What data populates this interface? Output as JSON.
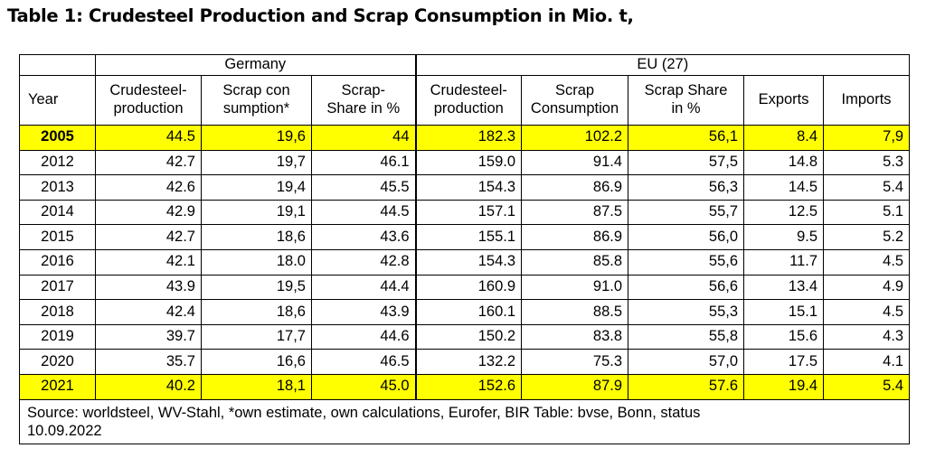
{
  "title": "Table 1: Crudesteel Production and Scrap Consumption in Mio. t,",
  "header": {
    "group_germany": "Germany",
    "group_eu": "EU (27)",
    "columns": [
      "Year",
      "Crudesteel-production",
      "Scrap con sumption*",
      "Scrap-Share in %",
      "Crudesteel-production",
      "Scrap Consumption",
      "Scrap Share in %",
      "Exports",
      "Imports"
    ],
    "columns_lines": [
      [
        "Year"
      ],
      [
        "Crudesteel-",
        "production"
      ],
      [
        "Scrap con",
        "sumption*"
      ],
      [
        "Scrap-",
        "Share in %"
      ],
      [
        "Crudesteel-",
        "production"
      ],
      [
        "Scrap",
        "Consumption"
      ],
      [
        "Scrap Share",
        "in %"
      ],
      [
        "Exports"
      ],
      [
        "Imports"
      ]
    ]
  },
  "rows": [
    {
      "year": "2005",
      "de_prod": "44.5",
      "de_scrap": "19,6",
      "de_share": "44",
      "eu_prod": "182.3",
      "eu_scrap": "102.2",
      "eu_share": "56,1",
      "exports": "8.4",
      "imports": "7,9",
      "highlight": true,
      "bold_year": true
    },
    {
      "year": "2012",
      "de_prod": "42.7",
      "de_scrap": "19,7",
      "de_share": "46.1",
      "eu_prod": "159.0",
      "eu_scrap": "91.4",
      "eu_share": "57,5",
      "exports": "14.8",
      "imports": "5.3",
      "highlight": false,
      "bold_year": false
    },
    {
      "year": "2013",
      "de_prod": "42.6",
      "de_scrap": "19,4",
      "de_share": "45.5",
      "eu_prod": "154.3",
      "eu_scrap": "86.9",
      "eu_share": "56,3",
      "exports": "14.5",
      "imports": "5.4",
      "highlight": false,
      "bold_year": false
    },
    {
      "year": "2014",
      "de_prod": "42.9",
      "de_scrap": "19,1",
      "de_share": "44.5",
      "eu_prod": "157.1",
      "eu_scrap": "87.5",
      "eu_share": "55,7",
      "exports": "12.5",
      "imports": "5.1",
      "highlight": false,
      "bold_year": false
    },
    {
      "year": "2015",
      "de_prod": "42.7",
      "de_scrap": "18,6",
      "de_share": "43.6",
      "eu_prod": "155.1",
      "eu_scrap": "86.9",
      "eu_share": "56,0",
      "exports": "9.5",
      "imports": "5.2",
      "highlight": false,
      "bold_year": false
    },
    {
      "year": "2016",
      "de_prod": "42.1",
      "de_scrap": "18.0",
      "de_share": "42.8",
      "eu_prod": "154.3",
      "eu_scrap": "85.8",
      "eu_share": "55,6",
      "exports": "11.7",
      "imports": "4.5",
      "highlight": false,
      "bold_year": false
    },
    {
      "year": "2017",
      "de_prod": "43.9",
      "de_scrap": "19,5",
      "de_share": "44.4",
      "eu_prod": "160.9",
      "eu_scrap": "91.0",
      "eu_share": "56,6",
      "exports": "13.4",
      "imports": "4.9",
      "highlight": false,
      "bold_year": false
    },
    {
      "year": "2018",
      "de_prod": "42.4",
      "de_scrap": "18,6",
      "de_share": "43.9",
      "eu_prod": "160.1",
      "eu_scrap": "88.5",
      "eu_share": "55,3",
      "exports": "15.1",
      "imports": "4.5",
      "highlight": false,
      "bold_year": false
    },
    {
      "year": "2019",
      "de_prod": "39.7",
      "de_scrap": "17,7",
      "de_share": "44.6",
      "eu_prod": "150.2",
      "eu_scrap": "83.8",
      "eu_share": "55,8",
      "exports": "15.6",
      "imports": "4.3",
      "highlight": false,
      "bold_year": false
    },
    {
      "year": "2020",
      "de_prod": "35.7",
      "de_scrap": "16,6",
      "de_share": "46.5",
      "eu_prod": "132.2",
      "eu_scrap": "75.3",
      "eu_share": "57,0",
      "exports": "17.5",
      "imports": "4.1",
      "highlight": false,
      "bold_year": false
    },
    {
      "year": "2021",
      "de_prod": "40.2",
      "de_scrap": "18,1",
      "de_share": "45.0",
      "eu_prod": "152.6",
      "eu_scrap": "87.9",
      "eu_share": "57.6",
      "exports": "19.4",
      "imports": "5.4",
      "highlight": true,
      "bold_year": false
    }
  ],
  "source_lines": [
    "Source: worldsteel, WV-Stahl, *own estimate, own calculations, Eurofer, BIR Table: bvse, Bonn, status",
    "10.09.2022"
  ],
  "colors": {
    "highlight": "#ffff00",
    "border": "#000000",
    "text": "#000000"
  }
}
